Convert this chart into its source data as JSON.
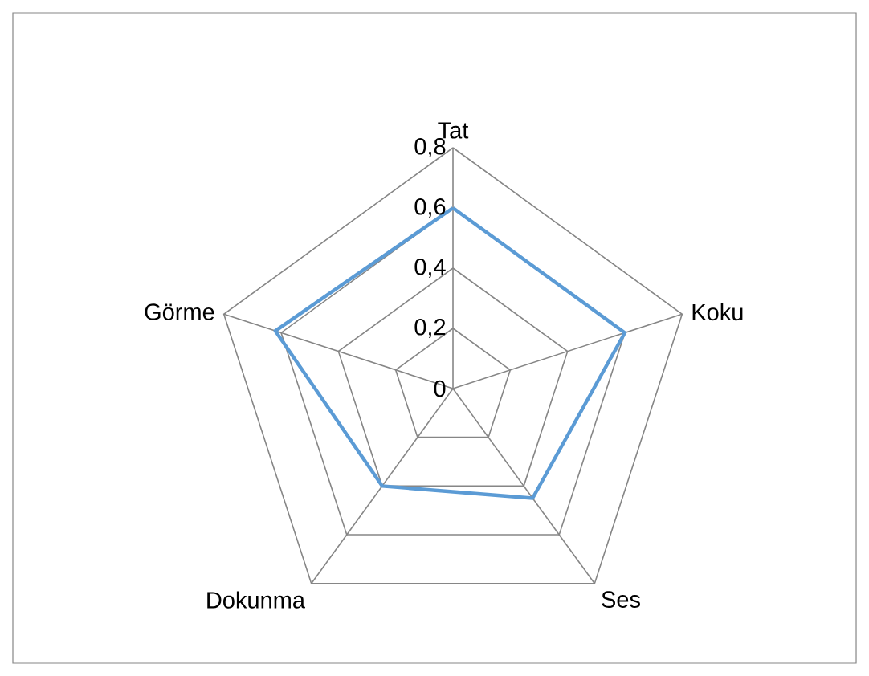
{
  "chart_data": {
    "type": "radar",
    "categories": [
      "Tat",
      "Koku",
      "Ses",
      "Dokunma",
      "Görme"
    ],
    "series": [
      {
        "color": "#5b9bd5",
        "values": [
          0.6,
          0.6,
          0.45,
          0.4,
          0.62
        ]
      }
    ],
    "ylim": [
      0,
      0.8
    ],
    "yticks": [
      {
        "value": 0,
        "label": "0"
      },
      {
        "value": 0.2,
        "label": "0,2"
      },
      {
        "value": 0.4,
        "label": "0,4"
      },
      {
        "value": 0.6,
        "label": "0,6"
      },
      {
        "value": 0.8,
        "label": "0,8"
      }
    ],
    "marker": "none",
    "line_style": "solid"
  }
}
